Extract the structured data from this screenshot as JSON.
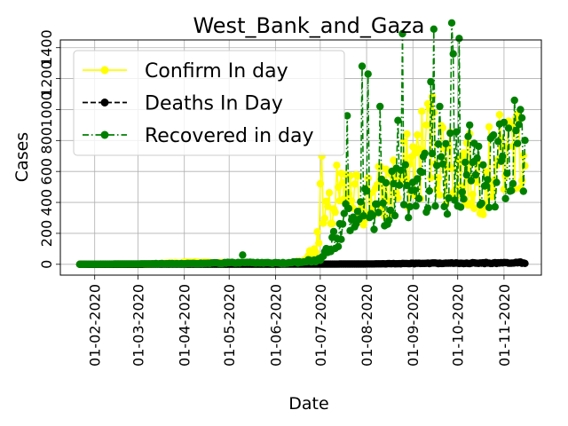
{
  "chart_data": {
    "type": "line",
    "title": "West_Bank_and_Gaza",
    "xlabel": "Date",
    "ylabel": "Cases",
    "x_ticks": [
      "01-02-2020",
      "01-03-2020",
      "01-04-2020",
      "01-05-2020",
      "01-06-2020",
      "01-07-2020",
      "01-08-2020",
      "01-09-2020",
      "01-10-2020",
      "01-11-2020"
    ],
    "y_ticks": [
      0,
      200,
      400,
      600,
      800,
      1000,
      1200,
      1400
    ],
    "y_tick_labels": [
      "0",
      "200",
      "400",
      "600",
      "800",
      "1000",
      "1200",
      "1400"
    ],
    "xlim": [
      "2020-01-09",
      "2020-11-26"
    ],
    "ylim": [
      -70,
      1450
    ],
    "grid": true,
    "legend_position": "upper-left",
    "series": [
      {
        "name": "Confirm In day",
        "color": "#ffff00",
        "line_style": "solid",
        "marker": "circle",
        "start": "2020-01-22",
        "baseline": [
          [
            "2020-01-22",
            0
          ],
          [
            "2020-03-05",
            0
          ],
          [
            "2020-03-20",
            5
          ],
          [
            "2020-04-05",
            12
          ],
          [
            "2020-04-25",
            8
          ],
          [
            "2020-05-15",
            5
          ],
          [
            "2020-06-10",
            5
          ],
          [
            "2020-06-20",
            20
          ],
          [
            "2020-06-28",
            120
          ],
          [
            "2020-07-05",
            300
          ],
          [
            "2020-07-15",
            420
          ],
          [
            "2020-08-01",
            430
          ],
          [
            "2020-08-15",
            480
          ],
          [
            "2020-09-01",
            620
          ],
          [
            "2020-09-12",
            820
          ],
          [
            "2020-09-22",
            700
          ],
          [
            "2020-10-01",
            620
          ],
          [
            "2020-10-15",
            560
          ],
          [
            "2020-11-01",
            700
          ],
          [
            "2020-11-15",
            850
          ]
        ],
        "peaks": [
          [
            "2020-07-01",
            520
          ],
          [
            "2020-07-02",
            700
          ],
          [
            "2020-07-12",
            640
          ],
          [
            "2020-08-20",
            560
          ],
          [
            "2020-09-01",
            760
          ],
          [
            "2020-09-10",
            900
          ],
          [
            "2020-09-15",
            980
          ],
          [
            "2020-09-25",
            750
          ],
          [
            "2020-10-05",
            720
          ],
          [
            "2020-11-03",
            760
          ],
          [
            "2020-11-06",
            900
          ],
          [
            "2020-11-11",
            930
          ]
        ]
      },
      {
        "name": "Deaths In Day",
        "color": "#000000",
        "line_style": "dashed",
        "marker": "circle",
        "start": "2020-01-22",
        "baseline": [
          [
            "2020-01-22",
            0
          ],
          [
            "2020-07-01",
            1
          ],
          [
            "2020-08-01",
            2
          ],
          [
            "2020-09-01",
            5
          ],
          [
            "2020-10-01",
            7
          ],
          [
            "2020-11-01",
            8
          ],
          [
            "2020-11-15",
            10
          ]
        ],
        "peaks": [
          [
            "2020-10-20",
            12
          ],
          [
            "2020-11-12",
            15
          ]
        ]
      },
      {
        "name": "Recovered in day",
        "color": "#008000",
        "line_style": "dashdot",
        "marker": "circle",
        "start": "2020-01-22",
        "baseline": [
          [
            "2020-01-22",
            0
          ],
          [
            "2020-04-10",
            5
          ],
          [
            "2020-05-05",
            10
          ],
          [
            "2020-06-10",
            8
          ],
          [
            "2020-07-01",
            30
          ],
          [
            "2020-07-20",
            300
          ],
          [
            "2020-08-10",
            380
          ],
          [
            "2020-09-01",
            480
          ],
          [
            "2020-09-15",
            520
          ],
          [
            "2020-10-01",
            620
          ],
          [
            "2020-10-15",
            560
          ],
          [
            "2020-11-01",
            680
          ],
          [
            "2020-11-15",
            720
          ]
        ],
        "peaks": [
          [
            "2020-05-10",
            60
          ],
          [
            "2020-07-19",
            960
          ],
          [
            "2020-07-29",
            1280
          ],
          [
            "2020-08-02",
            1230
          ],
          [
            "2020-08-10",
            1020
          ],
          [
            "2020-08-22",
            930
          ],
          [
            "2020-08-25",
            1490
          ],
          [
            "2020-09-13",
            1180
          ],
          [
            "2020-09-15",
            1520
          ],
          [
            "2020-09-19",
            1020
          ],
          [
            "2020-09-27",
            1560
          ],
          [
            "2020-09-28",
            1360
          ],
          [
            "2020-10-02",
            1460
          ],
          [
            "2020-10-09",
            900
          ],
          [
            "2020-11-04",
            880
          ],
          [
            "2020-11-08",
            1060
          ],
          [
            "2020-11-12",
            1000
          ]
        ]
      }
    ]
  }
}
